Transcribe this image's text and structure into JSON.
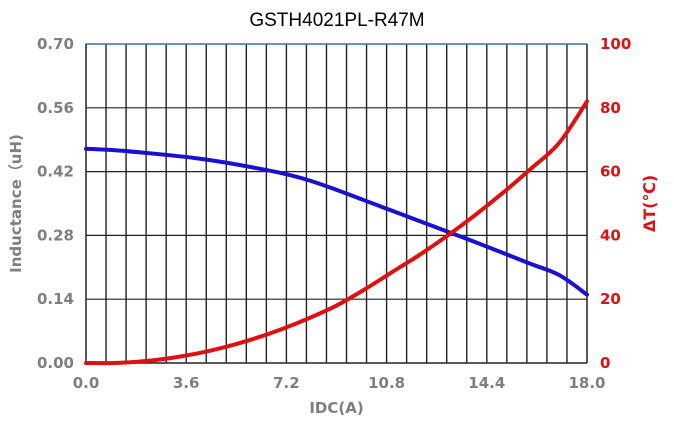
{
  "chart_data": {
    "type": "line",
    "title": "GSTH4021PL-R47M",
    "xlabel": "IDC(A)",
    "ylabel": "Inductance（uH)",
    "y2label": "ΔT(℃)",
    "xlim": [
      0,
      18
    ],
    "ylim": [
      0,
      0.7
    ],
    "y2lim": [
      0,
      100
    ],
    "x_ticks": [
      "0.0",
      "3.6",
      "7.2",
      "10.8",
      "14.4",
      "18.0"
    ],
    "y_ticks": [
      "0.00",
      "0.14",
      "0.28",
      "0.42",
      "0.56",
      "0.70"
    ],
    "y2_ticks": [
      "0",
      "20",
      "40",
      "60",
      "80",
      "100"
    ],
    "grid": true,
    "series": [
      {
        "axis": "left",
        "color": "#1a10d0",
        "x": [
          0,
          1,
          2,
          3,
          4,
          5,
          6,
          7,
          8,
          9,
          10,
          11,
          12,
          13,
          14,
          15,
          16,
          17,
          18
        ],
        "values": [
          0.47,
          0.467,
          0.462,
          0.456,
          0.449,
          0.44,
          0.429,
          0.417,
          0.401,
          0.38,
          0.357,
          0.334,
          0.311,
          0.288,
          0.265,
          0.241,
          0.217,
          0.193,
          0.15
        ]
      },
      {
        "axis": "right",
        "color": "#e01010",
        "x": [
          0,
          1,
          2,
          3,
          4,
          5,
          6,
          7,
          8,
          9,
          10,
          11,
          12,
          13,
          14,
          15,
          16,
          17,
          18
        ],
        "values": [
          0,
          0,
          0.5,
          1.5,
          3,
          5,
          7.5,
          10.5,
          14,
          18,
          23,
          28.5,
          34,
          40,
          46.5,
          53.5,
          61,
          69,
          82
        ]
      }
    ]
  }
}
